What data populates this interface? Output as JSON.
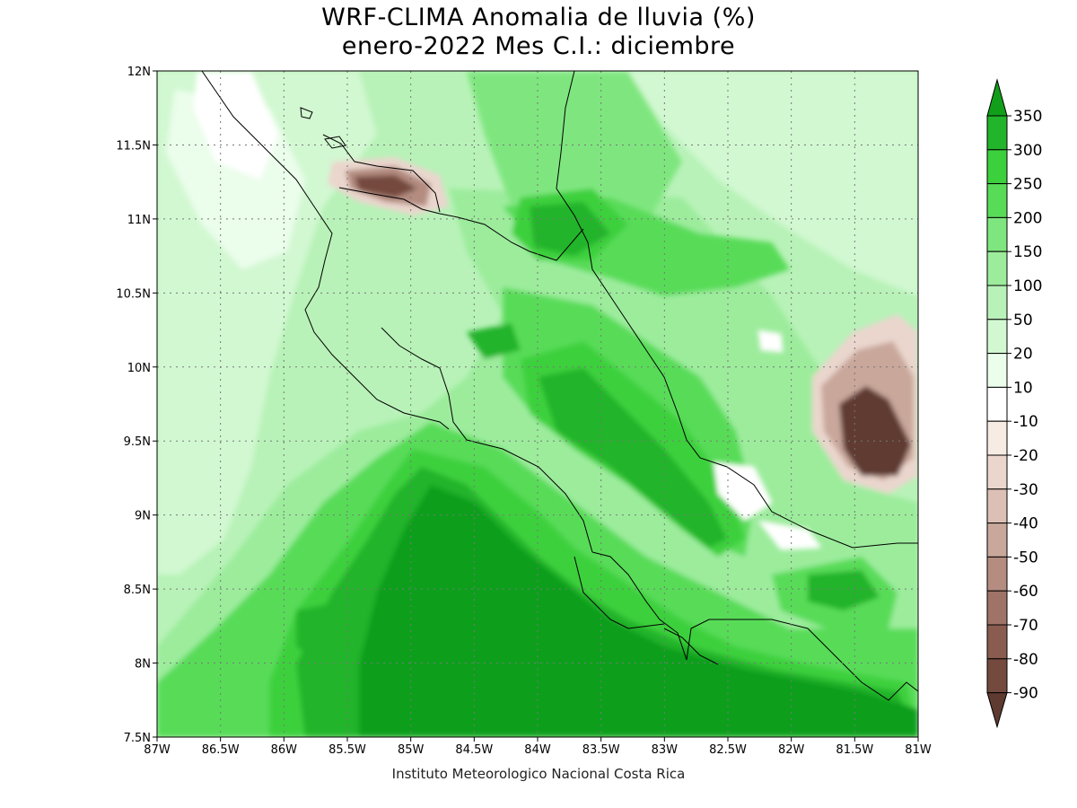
{
  "title": {
    "line1": "WRF-CLIMA Anomalia de lluvia (%)",
    "line2": "enero-2022 Mes C.I.: diciembre"
  },
  "credit": "Instituto Meteorologico Nacional Costa Rica",
  "map": {
    "lon_range": [
      -87,
      -81
    ],
    "lat_range": [
      7.5,
      12
    ],
    "x_ticks": [
      {
        "value": -87,
        "label": "87W"
      },
      {
        "value": -86.5,
        "label": "86.5W"
      },
      {
        "value": -86,
        "label": "86W"
      },
      {
        "value": -85.5,
        "label": "85.5W"
      },
      {
        "value": -85,
        "label": "85W"
      },
      {
        "value": -84.5,
        "label": "84.5W"
      },
      {
        "value": -84,
        "label": "84W"
      },
      {
        "value": -83.5,
        "label": "83.5W"
      },
      {
        "value": -83,
        "label": "83W"
      },
      {
        "value": -82.5,
        "label": "82.5W"
      },
      {
        "value": -82,
        "label": "82W"
      },
      {
        "value": -81.5,
        "label": "81.5W"
      },
      {
        "value": -81,
        "label": "81W"
      }
    ],
    "y_ticks": [
      {
        "value": 7.5,
        "label": "7.5N"
      },
      {
        "value": 8,
        "label": "8N"
      },
      {
        "value": 8.5,
        "label": "8.5N"
      },
      {
        "value": 9,
        "label": "9N"
      },
      {
        "value": 9.5,
        "label": "9.5N"
      },
      {
        "value": 10,
        "label": "10N"
      },
      {
        "value": 10.5,
        "label": "10.5N"
      },
      {
        "value": 11,
        "label": "11N"
      },
      {
        "value": 11.5,
        "label": "11.5N"
      },
      {
        "value": 12,
        "label": "12N"
      }
    ],
    "grid": "dotted"
  },
  "colorbar": {
    "orientation": "vertical",
    "position": "right",
    "labels": [
      "350",
      "300",
      "250",
      "200",
      "150",
      "100",
      "50",
      "20",
      "10",
      "-10",
      "-20",
      "-30",
      "-40",
      "-50",
      "-60",
      "-70",
      "-80",
      "-90"
    ],
    "colors_top_to_bottom": [
      "#119f1a",
      "#22b42a",
      "#3cd03c",
      "#58dc58",
      "#7fe67f",
      "#9cec9c",
      "#b8f2b8",
      "#d2f8d2",
      "#ebfdeb",
      "#ffffff",
      "#f7ece4",
      "#ead6cd",
      "#dcc0b5",
      "#c9a79b",
      "#b48c80",
      "#9f7367",
      "#8a5c50",
      "#74493e",
      "#5e3a30"
    ]
  }
}
